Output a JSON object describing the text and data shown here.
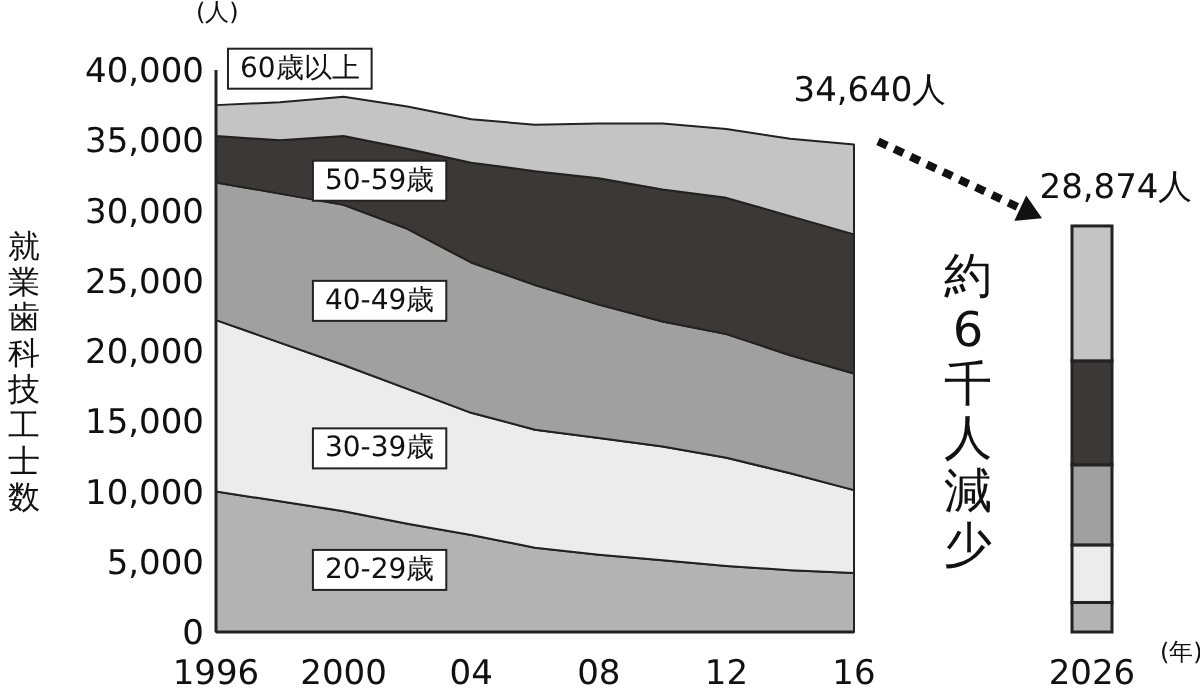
{
  "chart_data": [
    {
      "type": "area",
      "stacked": true,
      "ylabel": "就業歯科技工士数",
      "x": [
        1996,
        1998,
        2000,
        2002,
        2004,
        2006,
        2008,
        2010,
        2012,
        2014,
        2016
      ],
      "series": [
        {
          "name": "20-29歳",
          "color": "#b3b3b3",
          "values": [
            10000,
            9300,
            8600,
            7700,
            6900,
            6000,
            5500,
            5100,
            4700,
            4400,
            4200
          ]
        },
        {
          "name": "30-39歳",
          "color": "#ececec",
          "values": [
            12200,
            11300,
            10400,
            9600,
            8700,
            8400,
            8300,
            8100,
            7700,
            6900,
            5900
          ]
        },
        {
          "name": "40-49歳",
          "color": "#a0a0a0",
          "values": [
            9800,
            10600,
            11400,
            11400,
            10700,
            10300,
            9500,
            8900,
            8800,
            8400,
            8300
          ]
        },
        {
          "name": "50-59歳",
          "color": "#3d3838",
          "values": [
            3300,
            3800,
            4900,
            5700,
            7100,
            8100,
            9000,
            9400,
            9700,
            9900,
            9900
          ]
        },
        {
          "name": "60歳以上",
          "color": "#c4c4c4",
          "values": [
            2200,
            2700,
            2800,
            3000,
            3100,
            3300,
            3900,
            4700,
            4900,
            5500,
            6400
          ]
        }
      ],
      "xlim": [
        1996,
        2016
      ],
      "xticks": [
        1996,
        2000,
        {
          "value": 2004,
          "label": "04"
        },
        {
          "value": 2008,
          "label": "08"
        },
        {
          "value": 2012,
          "label": "12"
        },
        {
          "value": 2016,
          "label": "16"
        }
      ],
      "ylim": [
        0,
        40000
      ],
      "yticks": [
        0,
        {
          "value": 5000,
          "label": "5,000"
        },
        {
          "value": 10000,
          "label": "10,000"
        },
        {
          "value": 15000,
          "label": "15,000"
        },
        {
          "value": 20000,
          "label": "20,000"
        },
        {
          "value": 25000,
          "label": "25,000"
        },
        {
          "value": 30000,
          "label": "30,000"
        },
        {
          "value": 35000,
          "label": "35,000"
        },
        {
          "value": 40000,
          "label": "40,000"
        }
      ],
      "annotations": [
        {
          "text": "34,640人",
          "x": 2016,
          "y": 34640
        },
        "(人)"
      ]
    },
    {
      "type": "bar",
      "stacked": true,
      "categories": [
        "2026"
      ],
      "series": [
        {
          "color": "#b3b3b3",
          "values": [
            2100
          ]
        },
        {
          "color": "#ececec",
          "values": [
            4100
          ]
        },
        {
          "color": "#a0a0a0",
          "values": [
            5700
          ]
        },
        {
          "color": "#3d3838",
          "values": [
            7400
          ]
        },
        {
          "color": "#c4c4c4",
          "values": [
            9600
          ]
        }
      ],
      "ylim": [
        0,
        40000
      ],
      "tick_labels": "x",
      "annotations": [
        {
          "text": "28,874人",
          "x": "2026",
          "y": 28874
        },
        "約6千人減少",
        "(年)"
      ]
    }
  ]
}
